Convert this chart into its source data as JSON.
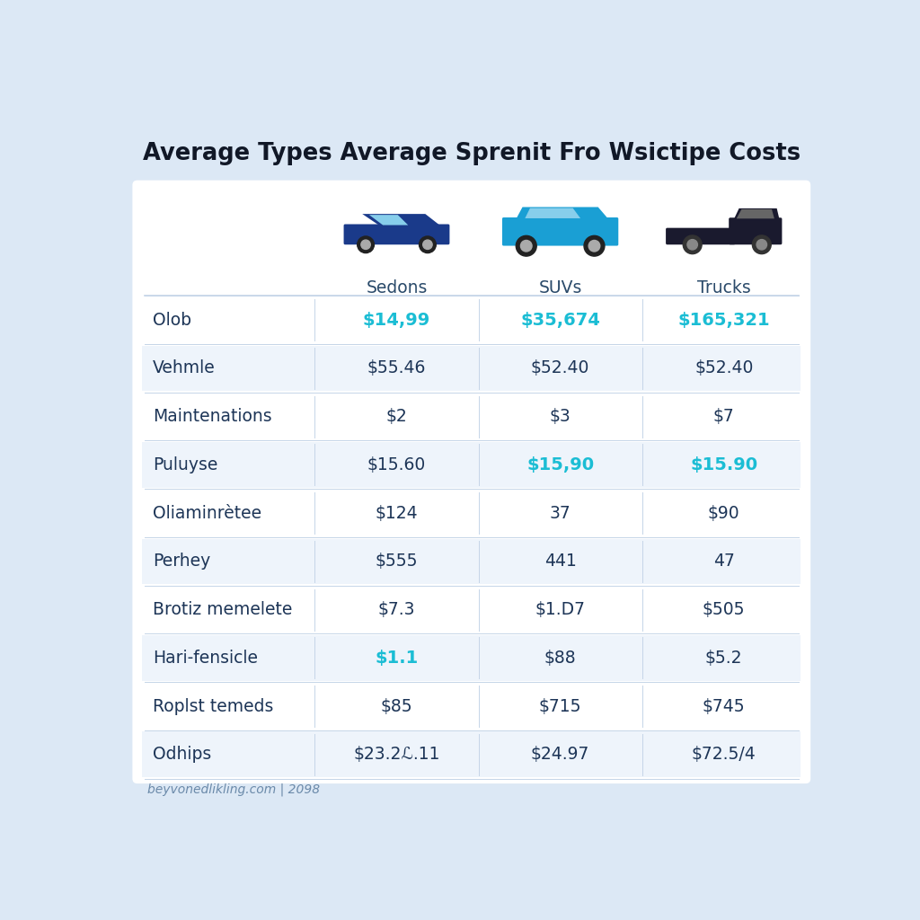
{
  "title": "Average Types Average Sprenit Fro Wsictipe Costs",
  "col_labels": [
    "Sedons",
    "SUVs",
    "Trucks"
  ],
  "rows": [
    {
      "label": "Olob",
      "vals": [
        "$14,99",
        "$35,674",
        "$165,321"
      ],
      "hl": [
        true,
        true,
        true
      ]
    },
    {
      "label": "Vehmle",
      "vals": [
        "$55.46",
        "$52.40",
        "$52.40"
      ],
      "hl": [
        false,
        false,
        false
      ]
    },
    {
      "label": "Maintenations",
      "vals": [
        "$2",
        "$3",
        "$7"
      ],
      "hl": [
        false,
        false,
        false
      ]
    },
    {
      "label": "Puluyse",
      "vals": [
        "$15.60",
        "$15,90",
        "$15.90"
      ],
      "hl": [
        false,
        true,
        true
      ]
    },
    {
      "label": "Oliaminrètee",
      "vals": [
        "$124",
        "37",
        "$90"
      ],
      "hl": [
        false,
        false,
        false
      ]
    },
    {
      "label": "Perhey",
      "vals": [
        "$555",
        "441",
        "47"
      ],
      "hl": [
        false,
        false,
        false
      ]
    },
    {
      "label": "Brotiz memelete",
      "vals": [
        "$7.3",
        "$1.D7",
        "$505"
      ],
      "hl": [
        false,
        false,
        false
      ]
    },
    {
      "label": "Hari-fensicle",
      "vals": [
        "$1.1",
        "$88",
        "$5.2"
      ],
      "hl": [
        true,
        false,
        false
      ]
    },
    {
      "label": "Roplst temeds",
      "vals": [
        "$85",
        "$715",
        "$745"
      ],
      "hl": [
        false,
        false,
        false
      ]
    },
    {
      "label": "Odhips",
      "vals": [
        "$23.2ℒ.11",
        "$24.97",
        "$72.5/4"
      ],
      "hl": [
        false,
        false,
        false
      ]
    }
  ],
  "footer": "beyvonedlikling.com | 2098",
  "bg_color": "#dce8f5",
  "table_bg": "#ffffff",
  "row_alt_color": "#eef4fb",
  "highlight_color": "#1bbdd4",
  "normal_color": "#1d3557",
  "label_color": "#1d3557",
  "header_label_color": "#2a4a6a",
  "border_color": "#c5d5e8",
  "title_color": "#111827",
  "footer_color": "#6b8aaa"
}
